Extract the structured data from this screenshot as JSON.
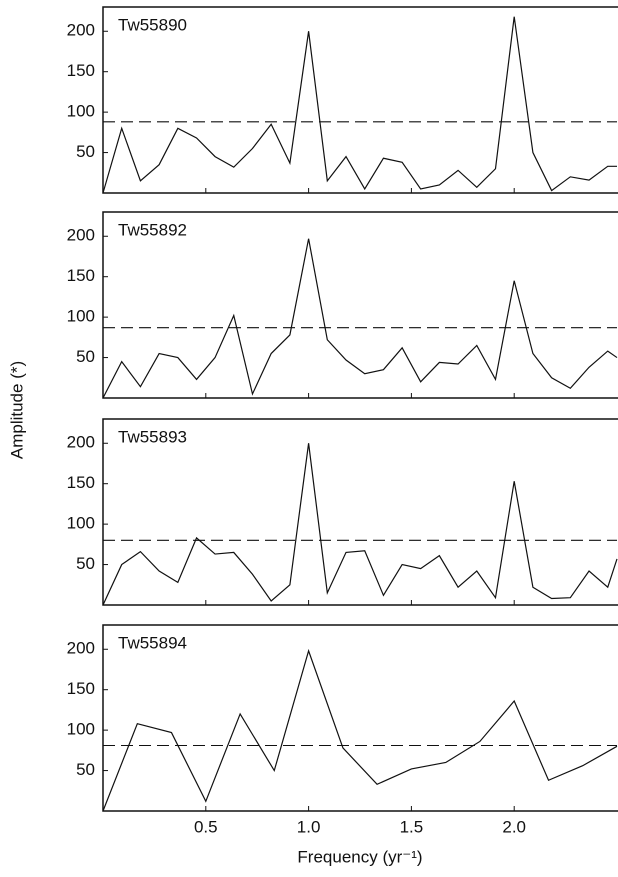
{
  "xlabel": "Frequency (yr⁻¹)",
  "ylabel": "Amplitude (*)",
  "chart_data": [
    {
      "type": "line",
      "title": "Tw55890",
      "threshold": 88,
      "x": [
        0,
        0.091,
        0.182,
        0.273,
        0.364,
        0.455,
        0.545,
        0.636,
        0.727,
        0.818,
        0.909,
        1,
        1.091,
        1.182,
        1.273,
        1.364,
        1.455,
        1.545,
        1.636,
        1.727,
        1.818,
        1.909,
        2,
        2.091,
        2.182,
        2.273,
        2.364,
        2.455,
        2.5
      ],
      "values": [
        0,
        80,
        15,
        35,
        80,
        68,
        45,
        32,
        55,
        85,
        37,
        200,
        15,
        45,
        5,
        43,
        38,
        5,
        10,
        28,
        7,
        30,
        218,
        50,
        3,
        20,
        16,
        33,
        33
      ],
      "color": "#111111",
      "xlim": [
        0,
        2.5
      ],
      "ylim": [
        0,
        230
      ],
      "xticks": [
        0.5,
        {
          "value": 1,
          "label": "1.0"
        },
        1.5,
        {
          "value": 2,
          "label": "2.0"
        }
      ],
      "yticks": [
        50,
        100,
        150,
        200
      ]
    },
    {
      "type": "line",
      "title": "Tw55892",
      "threshold": 87,
      "x": [
        0,
        0.091,
        0.182,
        0.273,
        0.364,
        0.455,
        0.545,
        0.636,
        0.727,
        0.818,
        0.909,
        1,
        1.091,
        1.182,
        1.273,
        1.364,
        1.455,
        1.545,
        1.636,
        1.727,
        1.818,
        1.909,
        2,
        2.091,
        2.182,
        2.273,
        2.364,
        2.455,
        2.5
      ],
      "values": [
        0,
        45,
        14,
        55,
        50,
        23,
        50,
        102,
        5,
        55,
        78,
        197,
        72,
        47,
        30,
        35,
        62,
        20,
        44,
        42,
        65,
        23,
        145,
        55,
        25,
        12,
        38,
        58,
        50
      ],
      "color": "#111111",
      "xlim": [
        0,
        2.5
      ],
      "ylim": [
        0,
        230
      ],
      "xticks": [
        0.5,
        {
          "value": 1,
          "label": "1.0"
        },
        1.5,
        {
          "value": 2,
          "label": "2.0"
        }
      ],
      "yticks": [
        50,
        100,
        150,
        200
      ]
    },
    {
      "type": "line",
      "title": "Tw55893",
      "threshold": 80,
      "x": [
        0,
        0.091,
        0.182,
        0.273,
        0.364,
        0.455,
        0.545,
        0.636,
        0.727,
        0.818,
        0.909,
        1,
        1.091,
        1.182,
        1.273,
        1.364,
        1.455,
        1.545,
        1.636,
        1.727,
        1.818,
        1.909,
        2,
        2.091,
        2.182,
        2.273,
        2.364,
        2.455,
        2.5
      ],
      "values": [
        0,
        50,
        66,
        42,
        28,
        83,
        63,
        65,
        38,
        5,
        25,
        200,
        15,
        65,
        67,
        12,
        50,
        45,
        61,
        22,
        42,
        9,
        153,
        22,
        8,
        9,
        42,
        22,
        57
      ],
      "color": "#111111",
      "xlim": [
        0,
        2.5
      ],
      "ylim": [
        0,
        230
      ],
      "xticks": [
        0.5,
        {
          "value": 1,
          "label": "1.0"
        },
        1.5,
        {
          "value": 2,
          "label": "2.0"
        }
      ],
      "yticks": [
        50,
        100,
        150,
        200
      ]
    },
    {
      "type": "line",
      "title": "Tw55894",
      "threshold": 81,
      "x": [
        0,
        0.167,
        0.333,
        0.5,
        0.667,
        0.833,
        1,
        1.167,
        1.333,
        1.5,
        1.667,
        1.833,
        2,
        2.167,
        2.333,
        2.5
      ],
      "values": [
        0,
        108,
        97,
        12,
        120,
        50,
        198,
        78,
        33,
        52,
        60,
        86,
        136,
        38,
        56,
        80
      ],
      "color": "#111111",
      "xlim": [
        0,
        2.5
      ],
      "ylim": [
        0,
        230
      ],
      "xticks": [
        0.5,
        {
          "value": 1,
          "label": "1.0"
        },
        1.5,
        {
          "value": 2,
          "label": "2.0"
        }
      ],
      "yticks": [
        50,
        100,
        150,
        200
      ]
    }
  ]
}
